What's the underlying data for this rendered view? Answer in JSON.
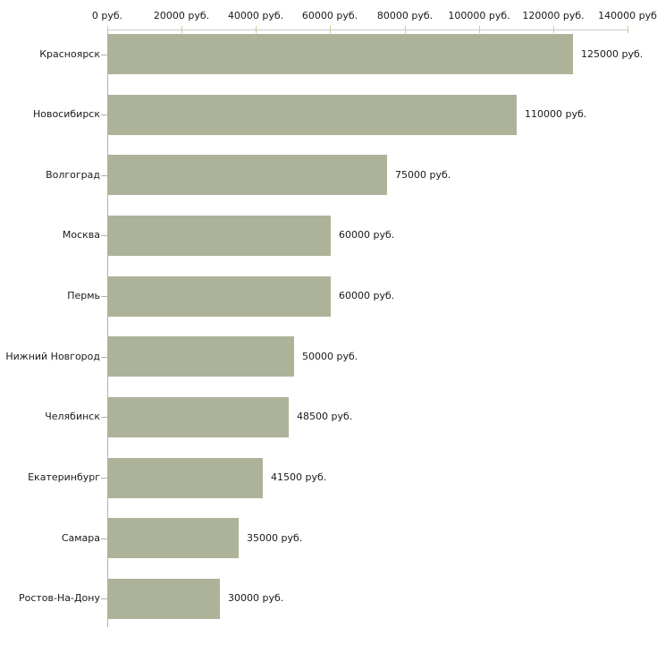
{
  "chart_data": {
    "type": "bar",
    "orientation": "horizontal",
    "title": "",
    "xlabel": "",
    "ylabel": "",
    "grid": false,
    "legend": false,
    "categories": [
      "Красноярск",
      "Новосибирск",
      "Волгоград",
      "Москва",
      "Пермь",
      "Нижний Новгород",
      "Челябинск",
      "Екатеринбург",
      "Самара",
      "Ростов-На-Дону"
    ],
    "values": [
      125000,
      110000,
      75000,
      60000,
      60000,
      50000,
      48500,
      41500,
      35000,
      30000
    ],
    "value_labels": [
      "125000 руб.",
      "110000 руб.",
      "75000 руб.",
      "60000 руб.",
      "60000 руб.",
      "50000 руб.",
      "48500 руб.",
      "41500 руб.",
      "35000 руб.",
      "30000 руб."
    ],
    "xlim": [
      0,
      140000
    ],
    "x_ticks": [
      0,
      20000,
      40000,
      60000,
      80000,
      100000,
      120000,
      140000
    ],
    "x_tick_labels": [
      "0 руб.",
      "20000 руб.",
      "40000 руб.",
      "60000 руб.",
      "80000 руб.",
      "100000 руб.",
      "120000 руб.",
      "140000 руб"
    ],
    "colors": {
      "bar_fill": "#adb399",
      "x_axis_line": "#c9c9c9",
      "y_axis_line": "#b1b1b1",
      "x_tick_mark": "#cccc99",
      "y_tick_mark": "#b1b1b1",
      "text": "#1a1a1a",
      "background": "#ffffff"
    }
  }
}
